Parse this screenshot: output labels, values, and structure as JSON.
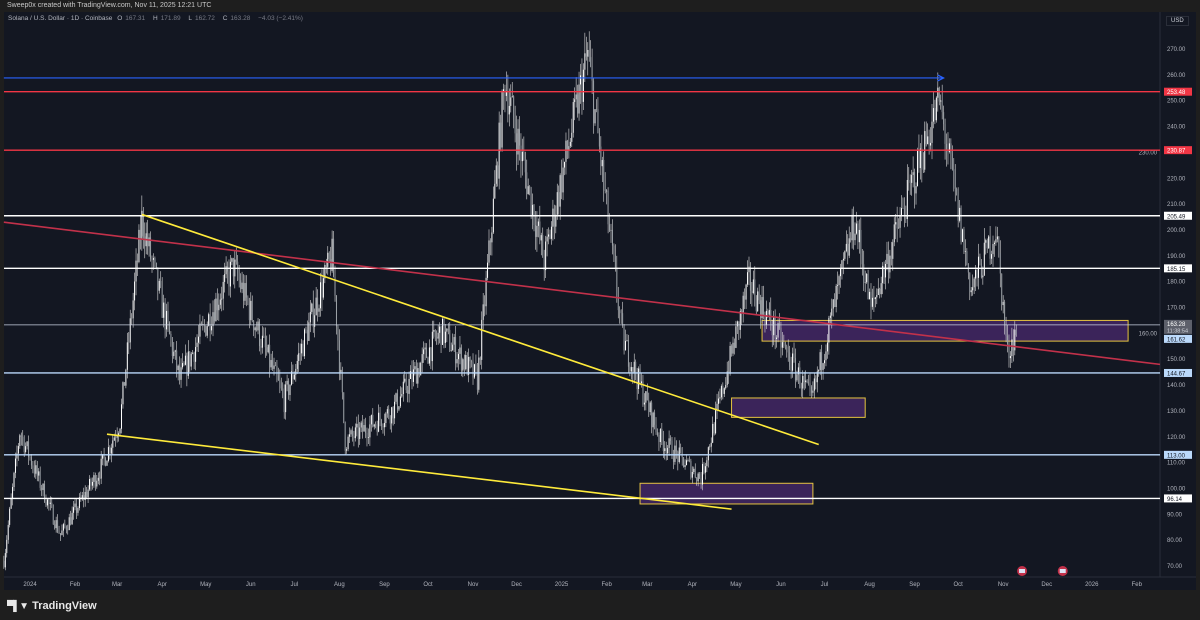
{
  "credit": "Sweep0x created with TradingView.com, Nov 11, 2025 12:21 UTC",
  "legend": {
    "symbol": "Solana / U.S. Dollar · 1D · Coinbase",
    "open_label": "O",
    "open": "167.31",
    "high_label": "H",
    "high": "171.89",
    "low_label": "L",
    "low": "162.72",
    "close_label": "C",
    "close": "163.28",
    "change": "−4.03 (−2.41%)"
  },
  "currency": "USD",
  "footer": {
    "brand": "TradingView"
  },
  "colors": {
    "background": "#131722",
    "candle": "#d9d9d9",
    "resistance": "#f23645",
    "support_light": "#bbd9fb",
    "trendline": "#ffeb3b",
    "zone_fill": "#4a2a6e",
    "arrow": "#2962ff"
  },
  "chart_data": {
    "type": "candlestick",
    "symbol": "SOL/USD",
    "timeframe": "1D",
    "ylim": [
      65,
      280
    ],
    "y_ticks": [
      "70.00",
      "80.00",
      "90.00",
      "100.00",
      "110.00",
      "120.00",
      "130.00",
      "140.00",
      "150.00",
      "160.00",
      "170.00",
      "180.00",
      "190.00",
      "200.00",
      "210.00",
      "220.00",
      "230.00",
      "240.00",
      "250.00",
      "260.00",
      "270.00"
    ],
    "x_ticks": [
      {
        "label": "2024",
        "date": "2024-01-01"
      },
      {
        "label": "Feb",
        "date": "2024-02-01"
      },
      {
        "label": "Mar",
        "date": "2024-03-01"
      },
      {
        "label": "Apr",
        "date": "2024-04-01"
      },
      {
        "label": "May",
        "date": "2024-05-01"
      },
      {
        "label": "Jun",
        "date": "2024-06-01"
      },
      {
        "label": "Jul",
        "date": "2024-07-01"
      },
      {
        "label": "Aug",
        "date": "2024-08-01"
      },
      {
        "label": "Sep",
        "date": "2024-09-01"
      },
      {
        "label": "Oct",
        "date": "2024-10-01"
      },
      {
        "label": "Nov",
        "date": "2024-11-01"
      },
      {
        "label": "Dec",
        "date": "2024-12-01"
      },
      {
        "label": "2025",
        "date": "2025-01-01"
      },
      {
        "label": "Feb",
        "date": "2025-02-01"
      },
      {
        "label": "Mar",
        "date": "2025-03-01"
      },
      {
        "label": "Apr",
        "date": "2025-04-01"
      },
      {
        "label": "May",
        "date": "2025-05-01"
      },
      {
        "label": "Jun",
        "date": "2025-06-01"
      },
      {
        "label": "Jul",
        "date": "2025-07-01"
      },
      {
        "label": "Aug",
        "date": "2025-08-01"
      },
      {
        "label": "Sep",
        "date": "2025-09-01"
      },
      {
        "label": "Oct",
        "date": "2025-10-01"
      },
      {
        "label": "Nov",
        "date": "2025-11-01"
      },
      {
        "label": "Dec",
        "date": "2025-12-01"
      },
      {
        "label": "2026",
        "date": "2026-01-01"
      },
      {
        "label": "Feb",
        "date": "2026-02-01"
      }
    ],
    "price_path": [
      [
        "2023-12-14",
        72
      ],
      [
        "2023-12-25",
        122
      ],
      [
        "2024-01-22",
        82
      ],
      [
        "2024-02-18",
        107
      ],
      [
        "2024-03-03",
        126
      ],
      [
        "2024-03-18",
        204
      ],
      [
        "2024-04-13",
        142
      ],
      [
        "2024-05-20",
        186
      ],
      [
        "2024-06-24",
        134
      ],
      [
        "2024-07-27",
        190
      ],
      [
        "2024-08-05",
        118
      ],
      [
        "2024-09-06",
        130
      ],
      [
        "2024-10-10",
        161
      ],
      [
        "2024-11-04",
        142
      ],
      [
        "2024-11-23",
        258
      ],
      [
        "2024-12-20",
        188
      ],
      [
        "2025-01-19",
        268
      ],
      [
        "2025-02-12",
        158
      ],
      [
        "2025-03-10",
        119
      ],
      [
        "2025-04-07",
        104
      ],
      [
        "2025-05-10",
        180
      ],
      [
        "2025-06-22",
        134
      ],
      [
        "2025-07-22",
        204
      ],
      [
        "2025-08-02",
        169
      ],
      [
        "2025-09-18",
        250
      ],
      [
        "2025-10-10",
        177
      ],
      [
        "2025-10-27",
        200
      ],
      [
        "2025-11-04",
        152
      ],
      [
        "2025-11-11",
        163.28
      ]
    ],
    "horizontal_levels": [
      {
        "price": 253.48,
        "label": "253.48",
        "style": "red"
      },
      {
        "price": 230.87,
        "label": "230.87",
        "style": "red"
      },
      {
        "price": 205.49,
        "label": "205.49",
        "style": "white"
      },
      {
        "price": 185.15,
        "label": "185.15",
        "style": "white"
      },
      {
        "price": 144.67,
        "label": "144.67",
        "style": "lightblue"
      },
      {
        "price": 113.0,
        "label": "113.00",
        "style": "lightblue"
      },
      {
        "price": 96.14,
        "label": "96.14",
        "style": "white"
      }
    ],
    "last_price": {
      "price": 163.28,
      "label": "163.28",
      "countdown": "11:38:54"
    },
    "trendline_label": {
      "price": 161.62,
      "label": "161.62"
    },
    "arrow": {
      "price": 258.8,
      "from": "2023-12-14",
      "to": "2025-09-21"
    },
    "trendlines": [
      {
        "color": "red",
        "from": [
          "2023-12-14",
          203
        ],
        "to": [
          "2026-02-20",
          148
        ]
      },
      {
        "color": "yellow",
        "from": [
          "2024-03-18",
          206
        ],
        "to": [
          "2025-06-27",
          117
        ]
      },
      {
        "color": "yellow",
        "from": [
          "2024-02-23",
          121
        ],
        "to": [
          "2025-04-28",
          92
        ]
      }
    ],
    "zones": [
      {
        "from": "2025-05-19",
        "to": "2026-01-26",
        "top": 165,
        "bottom": 157
      },
      {
        "from": "2025-04-28",
        "to": "2025-07-29",
        "top": 135,
        "bottom": 127.5
      },
      {
        "from": "2025-02-24",
        "to": "2025-06-23",
        "top": 102,
        "bottom": 94
      }
    ],
    "event_markers": [
      "2025-11-14",
      "2025-12-12"
    ]
  }
}
